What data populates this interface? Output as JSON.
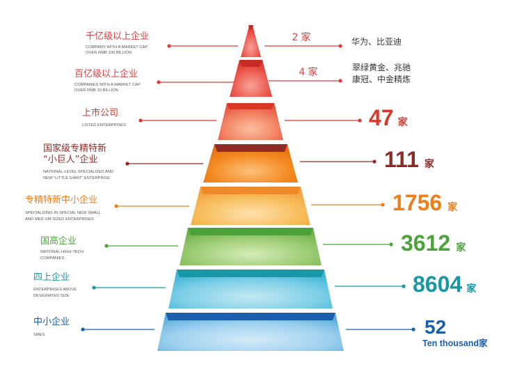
{
  "tiers": [
    {
      "id": "trillion",
      "title_lines": [
        "千亿级以上企业"
      ],
      "subtitle_lines": [
        "COMPANY WITH A MARKET CAP",
        "OVER RMB 100 BILLION"
      ],
      "count": "2",
      "unit": "家",
      "companies": [
        "华为、比亚迪"
      ],
      "color": "#e53a3a",
      "style": "small"
    },
    {
      "id": "ten-billion",
      "title_lines": [
        "百亿级以上企业"
      ],
      "subtitle_lines": [
        "COMPANIES WITH A MARKET CAP",
        "OVER RMB 10 BILLION"
      ],
      "count": "4",
      "unit": "家",
      "companies": [
        "翠绿黄金、兆驰",
        "康冠、中金精炼"
      ],
      "color": "#e53a3a",
      "style": "small"
    },
    {
      "id": "listed",
      "title_lines": [
        "上市公司"
      ],
      "subtitle_lines": [
        "LISTED  ENTERPRISES"
      ],
      "count": "47",
      "unit": "家",
      "color": "#d83a2e",
      "style": "big"
    },
    {
      "id": "little-giant",
      "title_lines": [
        "国家级专精特新",
        "“小巨人”企业"
      ],
      "subtitle_lines": [
        "NATIONAL-LEVEL SPECIALIZED AND",
        "NEW “LITTLE GIANT” ENTERPRISE"
      ],
      "count": "111",
      "unit": "家",
      "color": "#8f2a24",
      "style": "big"
    },
    {
      "id": "specialized",
      "title_lines": [
        "专精特新中小企业"
      ],
      "subtitle_lines": [
        "SPECIALIZING IN SPECIAL NEW SMALL",
        "AND MED UM-SIZED ENTERPRISES"
      ],
      "count": "1756",
      "unit": "家",
      "color": "#ee7d1a",
      "style": "big"
    },
    {
      "id": "high-tech",
      "title_lines": [
        "国高企业"
      ],
      "subtitle_lines": [
        "NATIONAL HIGH-TECH",
        "COMPANIES"
      ],
      "count": "3612",
      "unit": "家",
      "color": "#4ba33a",
      "style": "big"
    },
    {
      "id": "above-size",
      "title_lines": [
        "四上企业"
      ],
      "subtitle_lines": [
        "ENTERPRISES ABOVE",
        "DESIGNATED SIZE"
      ],
      "count": "8604",
      "unit": "家",
      "color": "#1897a6",
      "style": "big"
    },
    {
      "id": "smes",
      "title_lines": [
        "中小企业"
      ],
      "subtitle_lines": [
        "SMES"
      ],
      "count": "52",
      "unit": "Ten thousand家",
      "color": "#1a5fae",
      "style": "smes"
    }
  ]
}
